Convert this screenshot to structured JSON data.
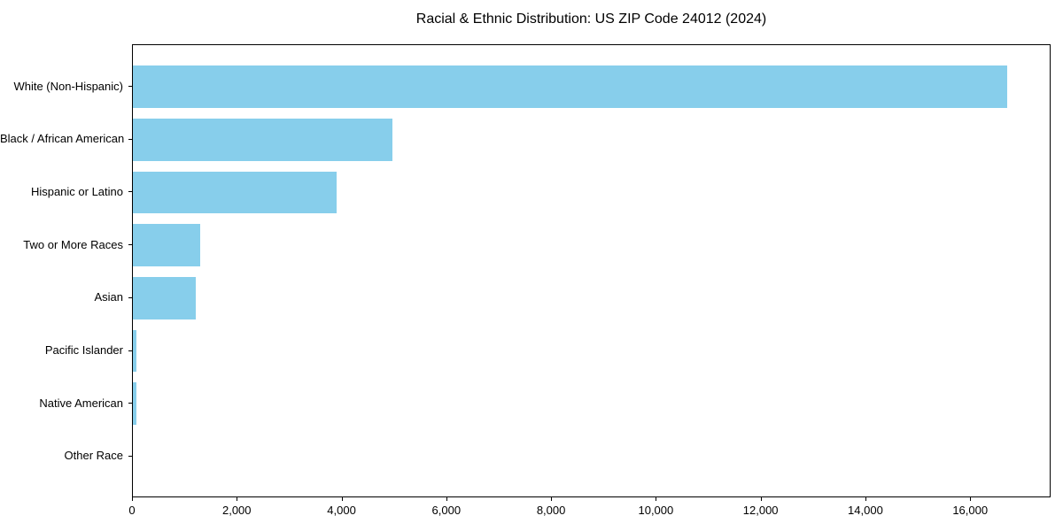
{
  "chart_data": {
    "type": "bar",
    "orientation": "horizontal",
    "title": "Racial & Ethnic Distribution: US ZIP Code 24012 (2024)",
    "categories": [
      "White (Non-Hispanic)",
      "Black / African American",
      "Hispanic or Latino",
      "Two or More Races",
      "Asian",
      "Pacific Islander",
      "Native American",
      "Other Race"
    ],
    "values": [
      16700,
      4970,
      3900,
      1300,
      1210,
      85,
      80,
      15
    ],
    "xlabel": "",
    "ylabel": "",
    "xlim": [
      0,
      17535
    ],
    "x_ticks": [
      0,
      2000,
      4000,
      6000,
      8000,
      10000,
      12000,
      14000,
      16000
    ],
    "x_tick_labels": [
      "0",
      "2,000",
      "4,000",
      "6,000",
      "8,000",
      "10,000",
      "12,000",
      "14,000",
      "16,000"
    ],
    "bar_color": "#87CEEB",
    "bar_height_fraction": 0.8,
    "grid": false,
    "legend": null,
    "background_color": "#ffffff",
    "spine_color": "#000000",
    "text_color": "#000000"
  }
}
